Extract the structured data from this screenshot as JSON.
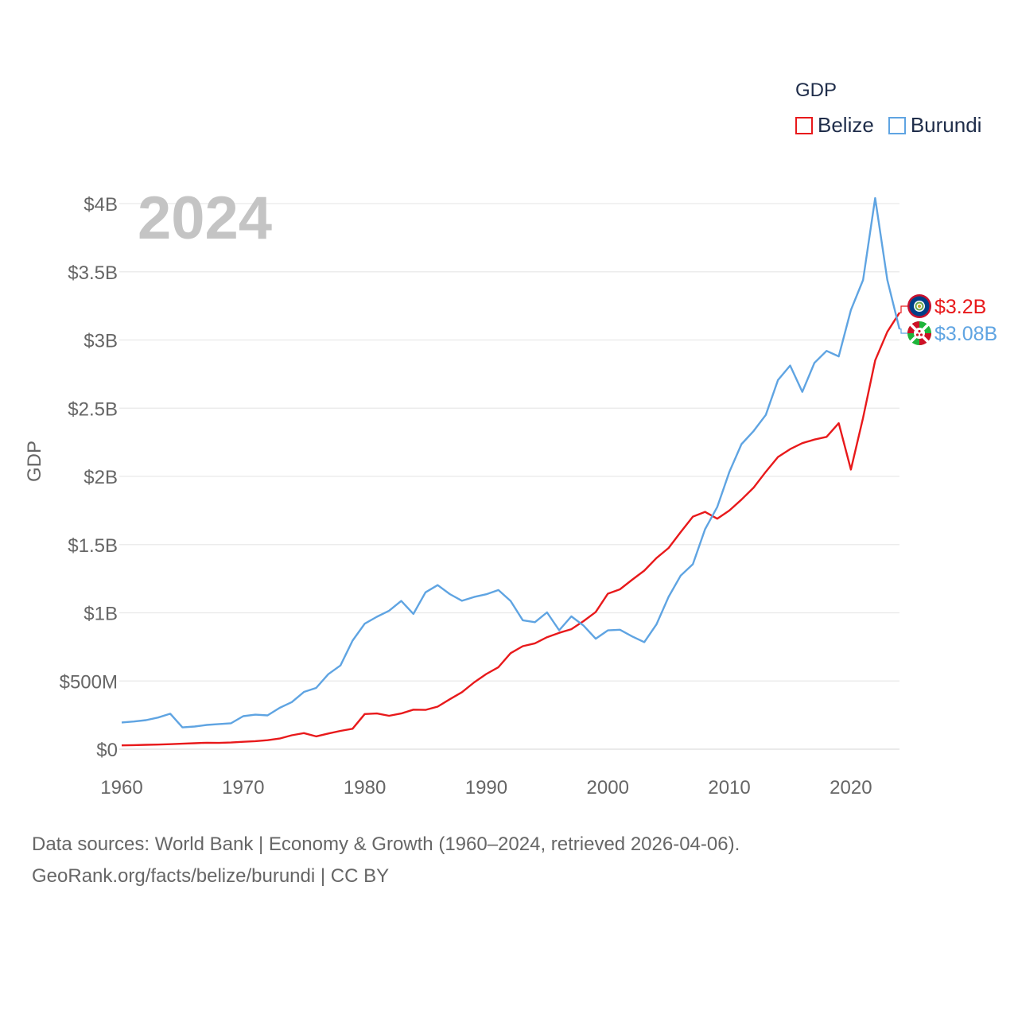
{
  "legend": {
    "title": "GDP",
    "items": [
      {
        "name": "Belize",
        "color": "#e8191b"
      },
      {
        "name": "Burundi",
        "color": "#5fa4e2"
      }
    ]
  },
  "sources": {
    "line1": "Data sources: World Bank | Economy & Growth (1960–2024, retrieved 2026-04-06).",
    "line2": "GeoRank.org/facts/belize/burundi | CC BY"
  },
  "chart_data": {
    "type": "line",
    "title": "GDP",
    "year_label": "2024",
    "xlabel": "",
    "ylabel": "GDP",
    "xlim": [
      1960,
      2024
    ],
    "ylim": [
      0,
      4000
    ],
    "units": "millions USD",
    "y_ticks": [
      {
        "value": 0,
        "label": "$0"
      },
      {
        "value": 500,
        "label": "$500M"
      },
      {
        "value": 1000,
        "label": "$1B"
      },
      {
        "value": 1500,
        "label": "$1.5B"
      },
      {
        "value": 2000,
        "label": "$2B"
      },
      {
        "value": 2500,
        "label": "$2.5B"
      },
      {
        "value": 3000,
        "label": "$3B"
      },
      {
        "value": 3500,
        "label": "$3.5B"
      },
      {
        "value": 4000,
        "label": "$4B"
      }
    ],
    "x_ticks": [
      1960,
      1970,
      1980,
      1990,
      2000,
      2010,
      2020
    ],
    "x": [
      1960,
      1961,
      1962,
      1963,
      1964,
      1965,
      1966,
      1967,
      1968,
      1969,
      1970,
      1971,
      1972,
      1973,
      1974,
      1975,
      1976,
      1977,
      1978,
      1979,
      1980,
      1981,
      1982,
      1983,
      1984,
      1985,
      1986,
      1987,
      1988,
      1989,
      1990,
      1991,
      1992,
      1993,
      1994,
      1995,
      1996,
      1997,
      1998,
      1999,
      2000,
      2001,
      2002,
      2003,
      2004,
      2005,
      2006,
      2007,
      2008,
      2009,
      2010,
      2011,
      2012,
      2013,
      2014,
      2015,
      2016,
      2017,
      2018,
      2019,
      2020,
      2021,
      2022,
      2023,
      2024
    ],
    "series": [
      {
        "name": "Belize",
        "color": "#e8191b",
        "end_label": "$3.2B",
        "values": [
          28,
          30,
          32,
          34,
          37,
          40,
          44,
          47,
          46,
          49,
          54,
          59,
          66,
          78,
          102,
          118,
          94,
          115,
          134,
          150,
          258,
          262,
          245,
          262,
          290,
          288,
          312,
          366,
          418,
          490,
          551,
          601,
          704,
          755,
          776,
          821,
          853,
          880,
          939,
          1005,
          1140,
          1172,
          1242,
          1309,
          1401,
          1475,
          1592,
          1705,
          1740,
          1690,
          1750,
          1830,
          1918,
          2034,
          2142,
          2200,
          2244,
          2270,
          2290,
          2390,
          2050,
          2430,
          2850,
          3060,
          3200
        ]
      },
      {
        "name": "Burundi",
        "color": "#5fa4e2",
        "end_label": "$3.08B",
        "values": [
          196,
          203,
          213,
          232,
          260,
          160,
          166,
          178,
          184,
          190,
          242,
          253,
          248,
          303,
          345,
          420,
          449,
          550,
          614,
          796,
          920,
          971,
          1015,
          1087,
          992,
          1150,
          1203,
          1137,
          1088,
          1116,
          1136,
          1167,
          1087,
          945,
          931,
          1003,
          872,
          974,
          906,
          810,
          871,
          876,
          827,
          785,
          915,
          1117,
          1273,
          1356,
          1612,
          1775,
          2033,
          2236,
          2333,
          2451,
          2706,
          2813,
          2620,
          2832,
          2920,
          2880,
          3220,
          3440,
          4040,
          3440,
          3080
        ]
      }
    ]
  }
}
